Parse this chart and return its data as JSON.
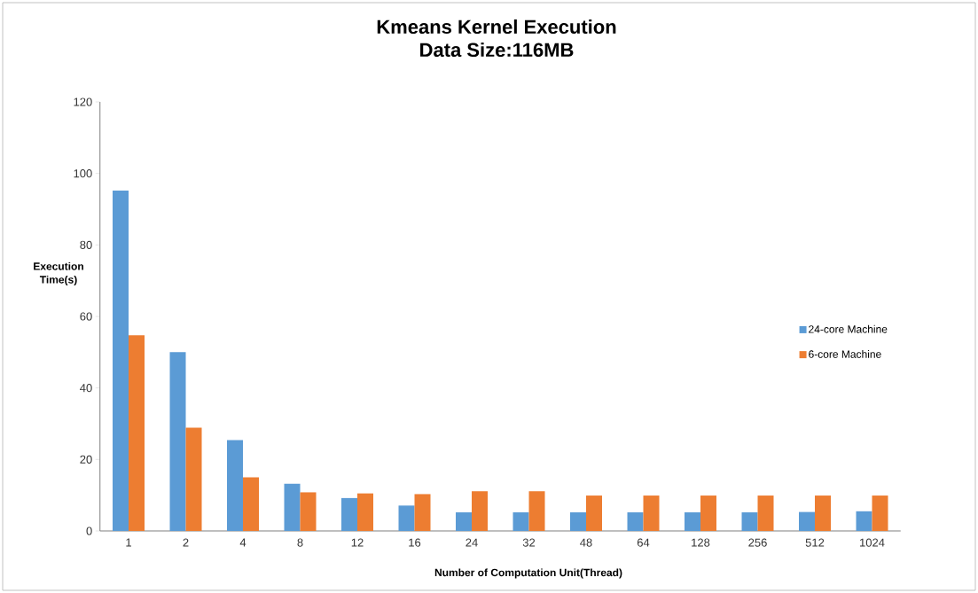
{
  "chart_data": {
    "type": "bar",
    "title": "Kmeans Kernel Execution",
    "subtitle": "Data Size:116MB",
    "xlabel": "Number of Computation Unit(Thread)",
    "ylabel": "Execution Time(s)",
    "categories": [
      "1",
      "2",
      "4",
      "8",
      "12",
      "16",
      "24",
      "32",
      "48",
      "64",
      "128",
      "256",
      "512",
      "1024"
    ],
    "series": [
      {
        "name": "24-core Machine",
        "color": "#5b9bd5",
        "values": [
          95.2,
          50.0,
          25.4,
          13.2,
          9.2,
          7.1,
          5.2,
          5.2,
          5.2,
          5.2,
          5.2,
          5.2,
          5.3,
          5.5
        ]
      },
      {
        "name": "6-core Machine",
        "color": "#ed7d31",
        "values": [
          54.7,
          28.9,
          15.0,
          10.8,
          10.5,
          10.3,
          11.1,
          11.1,
          9.9,
          9.9,
          9.9,
          9.9,
          9.9,
          9.9
        ]
      }
    ],
    "ylim": [
      0,
      120
    ],
    "yticks": [
      0,
      20,
      40,
      60,
      80,
      100,
      120
    ],
    "grid": false,
    "legend": "right"
  }
}
